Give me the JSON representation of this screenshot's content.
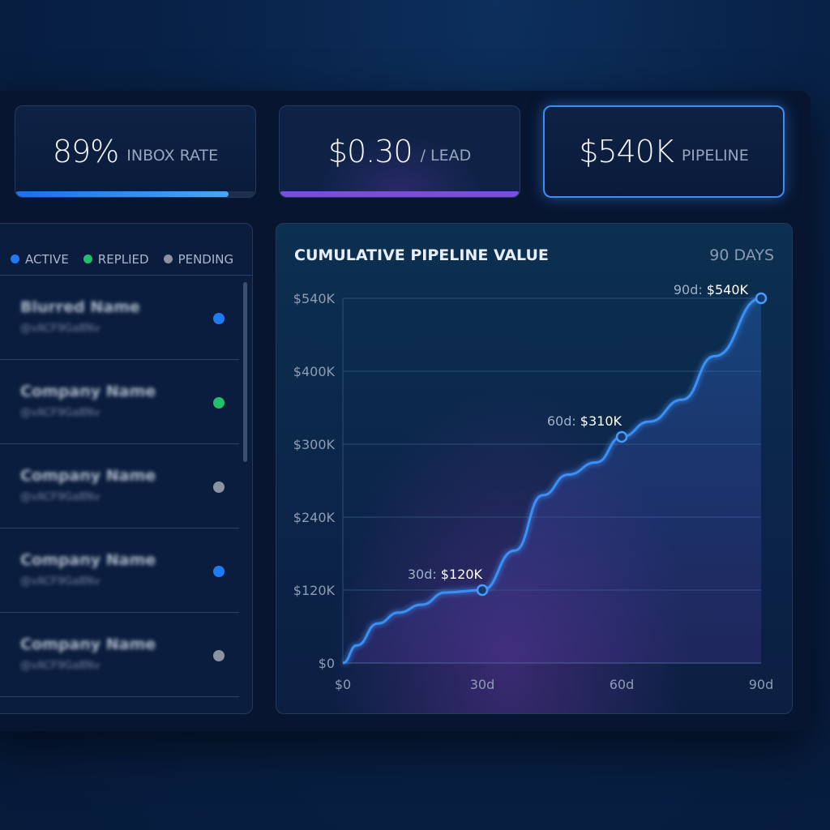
{
  "kpis": [
    {
      "value": "89%",
      "label": "INBOX RATE",
      "progress": 0.89,
      "bar_color": "#2f8df5"
    },
    {
      "value": "$0.30",
      "label": "/ LEAD",
      "progress": 1.0,
      "bar_color": "#7b4ddb"
    },
    {
      "value": "$540K",
      "label": "PIPELINE"
    }
  ],
  "legend": [
    {
      "label": "ACTIVE",
      "color": "#1f7bf2"
    },
    {
      "label": "REPLIED",
      "color": "#21c06a"
    },
    {
      "label": "PENDING",
      "color": "#8a93a3"
    }
  ],
  "contacts": [
    {
      "name": "Blurred Name",
      "handle": "@vACF9Ga8Nv",
      "status": "active"
    },
    {
      "name": "Company Name",
      "handle": "@vACF9Ga8Nv",
      "status": "replied"
    },
    {
      "name": "Company Name",
      "handle": "@vACF9Ga8Nv",
      "status": "pending"
    },
    {
      "name": "Company Name",
      "handle": "@vACF9Ga8Nv",
      "status": "active"
    },
    {
      "name": "Company Name",
      "handle": "@vACF9Ga8Nv",
      "status": "pending"
    }
  ],
  "chart_data": {
    "type": "line",
    "title": "CUMULATIVE PIPELINE VALUE",
    "range_label": "90 DAYS",
    "x_ticks": [
      {
        "v": 0,
        "label": "$0"
      },
      {
        "v": 30,
        "label": "30d"
      },
      {
        "v": 60,
        "label": "60d"
      },
      {
        "v": 90,
        "label": "90d"
      }
    ],
    "y_ticks": [
      {
        "v": 0,
        "label": "$0"
      },
      {
        "v": 120,
        "label": "$120K"
      },
      {
        "v": 240,
        "label": "$240K"
      },
      {
        "v": 300,
        "label": "$300K"
      },
      {
        "v": 400,
        "label": "$400K"
      },
      {
        "v": 540,
        "label": "$540K"
      }
    ],
    "xlim": [
      0,
      90
    ],
    "ylim": [
      0,
      540
    ],
    "y_unit": "K USD",
    "series": [
      {
        "name": "Pipeline",
        "color": "#3b8ff5",
        "points": [
          [
            0,
            0
          ],
          [
            3,
            29
          ],
          [
            7.5,
            65
          ],
          [
            12,
            83
          ],
          [
            17,
            96
          ],
          [
            22,
            116
          ],
          [
            30,
            120
          ],
          [
            37,
            185
          ],
          [
            43,
            258
          ],
          [
            48.5,
            275
          ],
          [
            54.5,
            285
          ],
          [
            60,
            310
          ],
          [
            66,
            331
          ],
          [
            73,
            361
          ],
          [
            80,
            429
          ],
          [
            90,
            540
          ]
        ]
      }
    ],
    "annotations": [
      {
        "x": 30,
        "y": 120,
        "prefix": "30d:",
        "value": "$120K"
      },
      {
        "x": 60,
        "y": 310,
        "prefix": "60d:",
        "value": "$310K"
      },
      {
        "x": 90,
        "y": 540,
        "prefix": "90d:",
        "value": "$540K"
      }
    ]
  }
}
